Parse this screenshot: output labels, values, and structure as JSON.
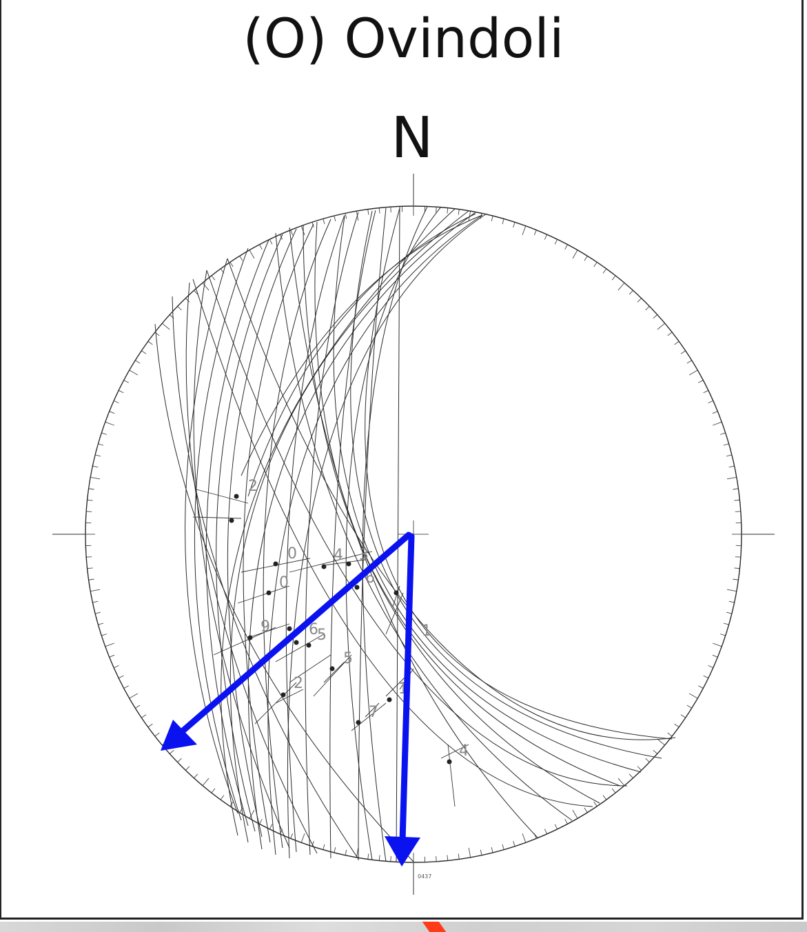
{
  "figure": {
    "title": "(O) Ovindoli",
    "north_label": "N",
    "stamp_text": "0437"
  },
  "colors": {
    "arrow": "#0b12f0",
    "net_lines": "#2a2a2a",
    "labels": "#888888",
    "background": "#ffffff"
  },
  "stereonet": {
    "projection": "lower-hemisphere equal-area",
    "tick_interval_deg": 2,
    "point_labels": [
      "2",
      "0",
      "4",
      "3",
      "0",
      "6",
      "1",
      "9",
      "5",
      "6",
      "5",
      "2",
      "1",
      "7",
      "4"
    ]
  },
  "arrows": [
    {
      "name": "southwest-arrow",
      "trend_deg": 233
    },
    {
      "name": "south-arrow",
      "trend_deg": 181
    }
  ]
}
